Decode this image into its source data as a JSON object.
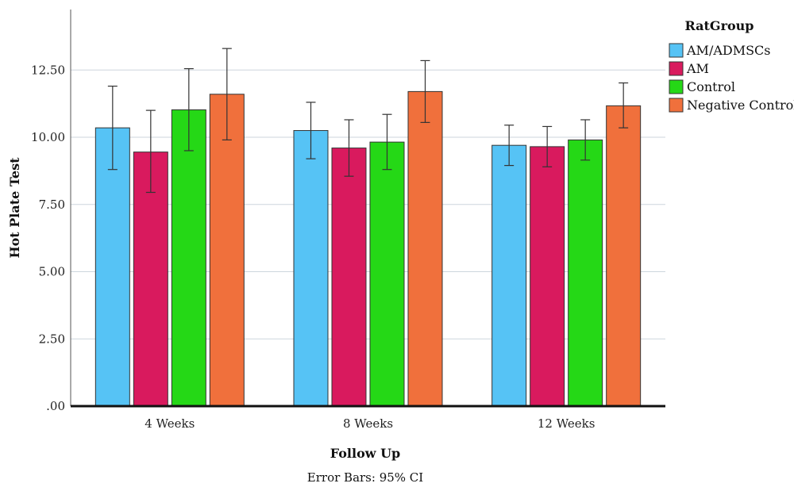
{
  "chart_data": {
    "type": "bar",
    "xlabel": "Follow Up",
    "ylabel": "Hot Plate Test",
    "footnote": "Error Bars: 95% CI",
    "ylim": [
      0,
      14.75
    ],
    "yticks": [
      0,
      2.5,
      5,
      7.5,
      10,
      12.5
    ],
    "ytick_labels": [
      ".00",
      "2.50",
      "5.00",
      "7.50",
      "10.00",
      "12.50"
    ],
    "grid": true,
    "legend_title": "RatGroup",
    "legend_position": "top-right",
    "categories": [
      "4 Weeks",
      "8 Weeks",
      "12 Weeks"
    ],
    "series": [
      {
        "name": "AM/ADMSCs",
        "color": "#56c3f5",
        "values": [
          10.35,
          10.25,
          9.7
        ],
        "ci_low": [
          8.8,
          9.2,
          8.95
        ],
        "ci_high": [
          11.9,
          11.3,
          10.45
        ]
      },
      {
        "name": "AM",
        "color": "#d91a5e",
        "values": [
          9.45,
          9.6,
          9.65
        ],
        "ci_low": [
          7.95,
          8.55,
          8.9
        ],
        "ci_high": [
          11.0,
          10.65,
          10.4
        ]
      },
      {
        "name": "Control",
        "color": "#25d816",
        "values": [
          11.02,
          9.82,
          9.9
        ],
        "ci_low": [
          9.5,
          8.8,
          9.15
        ],
        "ci_high": [
          12.55,
          10.85,
          10.65
        ]
      },
      {
        "name": "Negative Control",
        "color": "#f0703c",
        "values": [
          11.6,
          11.7,
          11.17
        ],
        "ci_low": [
          9.9,
          10.55,
          10.35
        ],
        "ci_high": [
          13.3,
          12.85,
          12.02
        ]
      }
    ]
  }
}
